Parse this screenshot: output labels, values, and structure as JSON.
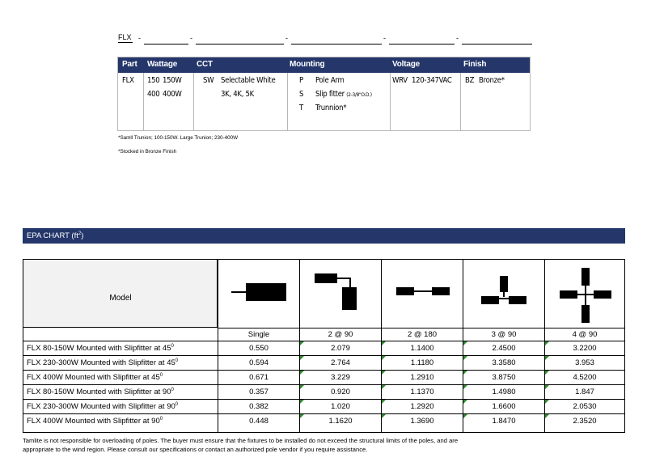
{
  "ordering": {
    "prefix": "FLX",
    "dash": "-",
    "headers": [
      "Part",
      "Wattage",
      "CCT",
      "Mounting",
      "Voltage",
      "Finish"
    ],
    "part": "FLX",
    "wattage": [
      {
        "code": "150",
        "label": "150W"
      },
      {
        "code": "400",
        "label": "400W"
      }
    ],
    "cct": {
      "code": "SW",
      "label1": "Selectable White",
      "label2": "3K, 4K, 5K"
    },
    "mounting": [
      {
        "code": "P",
        "label": "Pole Arm",
        "note": ""
      },
      {
        "code": "S",
        "label": "Slip fitter",
        "note": "(2-3/8\"O.D.)"
      },
      {
        "code": "T",
        "label": "Trunnion*",
        "note": ""
      }
    ],
    "voltage": {
      "code": "WRV",
      "label": "120-347VAC"
    },
    "finish": {
      "code": "BZ",
      "label": "Bronze*"
    },
    "notes": [
      "*Samll Trunion; 100-150W. Large Trunion; 230-400W",
      "*Stocked in Bronze Finish"
    ]
  },
  "epa": {
    "title": "EPA CHART (ft",
    "title_sup": "2",
    "title_end": ")",
    "model_header": "Model",
    "columns": [
      "Single",
      "2 @ 90",
      "2 @ 180",
      "3 @ 90",
      "4 @ 90"
    ],
    "icons": [
      "single-mount-icon",
      "two-at-90-mount-icon",
      "two-at-180-mount-icon",
      "three-at-90-mount-icon",
      "four-at-90-mount-icon"
    ],
    "rows": [
      {
        "model": "FLX 80-150W Mounted with Slipfitter at 45",
        "deg": "0",
        "values": [
          "0.550",
          "2.079",
          "1.1400",
          "2.4500",
          "3.2200"
        ]
      },
      {
        "model": "FLX 230-300W Mounted with Slipfitter at 45",
        "deg": "0",
        "values": [
          "0.594",
          "2.764",
          "1.1180",
          "3.3580",
          "3.953"
        ]
      },
      {
        "model": "FLX 400W Mounted with Slipfitter at 45",
        "deg": "0",
        "values": [
          "0.671",
          "3.229",
          "1.2910",
          "3.8750",
          "4.5200"
        ]
      },
      {
        "model": "FLX 80-150W Mounted with Slipfitter at 90",
        "deg": "0",
        "values": [
          "0.357",
          "0.920",
          "1.1370",
          "1.4980",
          "1.847"
        ]
      },
      {
        "model": "FLX 230-300W Mounted with Slipfitter at 90",
        "deg": "0",
        "values": [
          "0.382",
          "1.020",
          "1.2920",
          "1.6600",
          "2.0530"
        ]
      },
      {
        "model": "FLX 400W Mounted with Slipfitter at 90",
        "deg": "0",
        "values": [
          "0.448",
          "1.1620",
          "1.3690",
          "1.8470",
          "2.3520"
        ]
      }
    ],
    "accent": "#24366a"
  },
  "disclaimer": {
    "line1": "Tamlite is not responsible for overloading of poles. The buyer must ensure that the fixtures to be installed do not exceed the structural limits of the poles, and are",
    "line2": "appropriate to the wind region. Please consult our specifications or contact an authorized pole vendor if you require assistance."
  }
}
